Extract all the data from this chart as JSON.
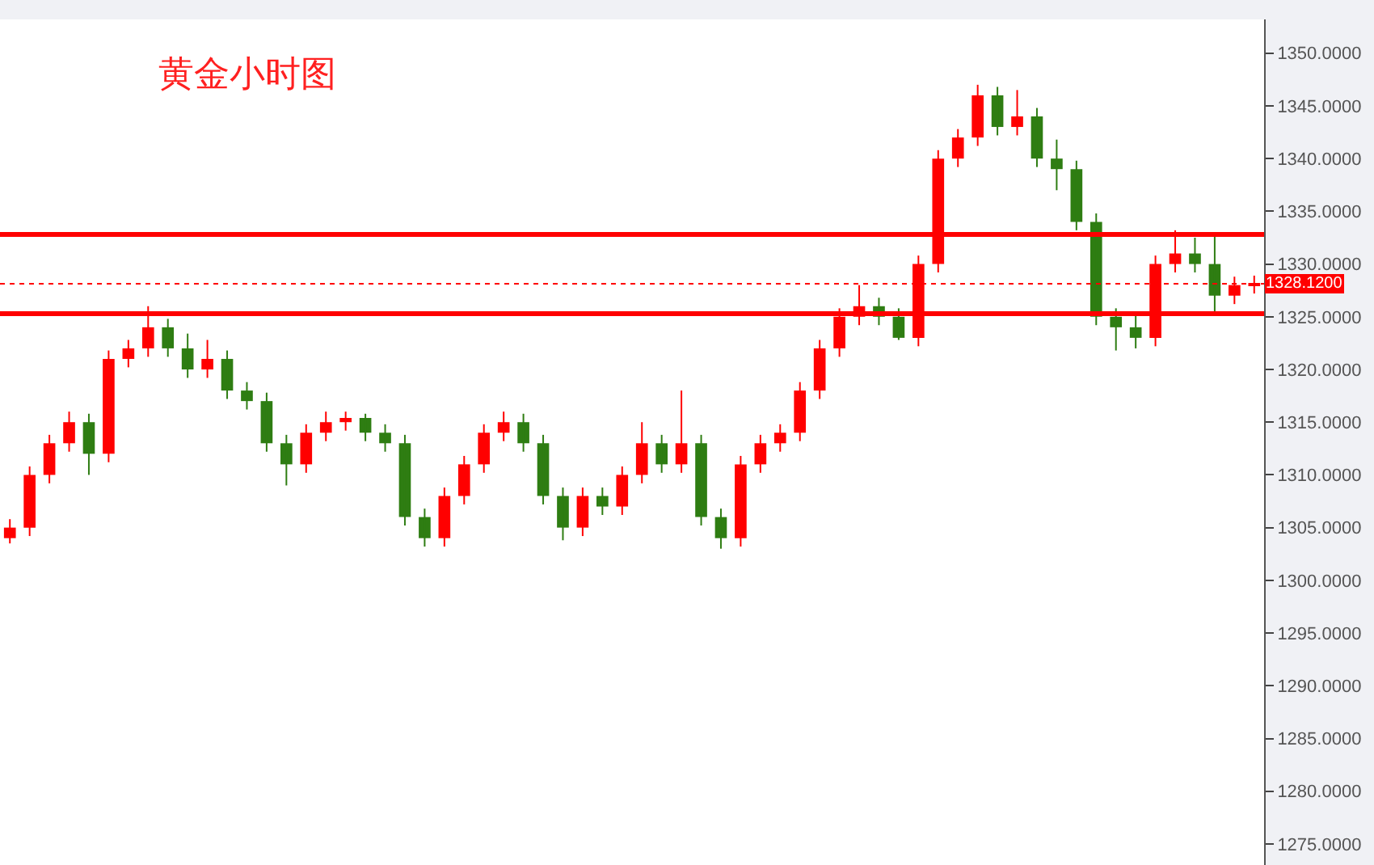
{
  "chart_data": {
    "type": "candlestick",
    "title": "黄金小时图",
    "categories": [
      null,
      null,
      null,
      null,
      null,
      null,
      null,
      null,
      null,
      null,
      null,
      null,
      null,
      null,
      null,
      null,
      null,
      null,
      null,
      null,
      null,
      null,
      null,
      null,
      null,
      null,
      null,
      null,
      null,
      null,
      null,
      null,
      null,
      null,
      null,
      null,
      null,
      null,
      null,
      null,
      null,
      null,
      null,
      null,
      null,
      null,
      null,
      null,
      null,
      null,
      null,
      null,
      null,
      null,
      null,
      null,
      null,
      null,
      null,
      null,
      null,
      null,
      null,
      null
    ],
    "series": [
      {
        "colors": [
          "#ff0000",
          "#ff0000",
          "#ff0000",
          "#ff0000",
          "#2e7d12",
          "#ff0000",
          "#ff0000",
          "#ff0000",
          "#2e7d12",
          "#2e7d12",
          "#ff0000",
          "#2e7d12",
          "#2e7d12",
          "#2e7d12",
          "#2e7d12",
          "#ff0000",
          "#ff0000",
          "#ff0000",
          "#2e7d12",
          "#2e7d12",
          "#2e7d12",
          "#2e7d12",
          "#ff0000",
          "#ff0000",
          "#ff0000",
          "#ff0000",
          "#2e7d12",
          "#2e7d12",
          "#2e7d12",
          "#ff0000",
          "#2e7d12",
          "#ff0000",
          "#ff0000",
          "#2e7d12",
          "#ff0000",
          "#2e7d12",
          "#2e7d12",
          "#ff0000",
          "#ff0000",
          "#ff0000",
          "#ff0000",
          "#ff0000",
          "#ff0000",
          "#ff0000",
          "#2e7d12",
          "#2e7d12",
          "#ff0000",
          "#ff0000",
          "#ff0000",
          "#ff0000",
          "#2e7d12",
          "#ff0000",
          "#2e7d12",
          "#2e7d12",
          "#2e7d12",
          "#2e7d12",
          "#2e7d12",
          "#2e7d12",
          "#ff0000",
          "#ff0000",
          "#2e7d12",
          "#2e7d12",
          "#ff0000",
          "#ff0000"
        ],
        "ohlc": [
          [
            1304,
            1305.8,
            1303.5,
            1305
          ],
          [
            1305,
            1310.8,
            1304.2,
            1310
          ],
          [
            1310,
            1313.8,
            1309.2,
            1313
          ],
          [
            1313,
            1316,
            1312.2,
            1315
          ],
          [
            1315,
            1315.8,
            1310,
            1312
          ],
          [
            1312,
            1321.8,
            1311.2,
            1321
          ],
          [
            1321,
            1322.8,
            1320.2,
            1322
          ],
          [
            1322,
            1326,
            1321.2,
            1324
          ],
          [
            1324,
            1324.8,
            1321.2,
            1322
          ],
          [
            1322,
            1323.4,
            1319.2,
            1320
          ],
          [
            1320,
            1322.8,
            1319.2,
            1321
          ],
          [
            1321,
            1321.8,
            1317.2,
            1318
          ],
          [
            1318,
            1318.8,
            1316.2,
            1317
          ],
          [
            1317,
            1317.8,
            1312.2,
            1313
          ],
          [
            1313,
            1313.8,
            1309,
            1311
          ],
          [
            1311,
            1314.8,
            1310.2,
            1314
          ],
          [
            1314,
            1316,
            1313.2,
            1315
          ],
          [
            1315,
            1316,
            1314.2,
            1315.4
          ],
          [
            1315.4,
            1315.8,
            1313.2,
            1314
          ],
          [
            1314,
            1314.8,
            1312.2,
            1313
          ],
          [
            1313,
            1313.8,
            1305.2,
            1306
          ],
          [
            1306,
            1306.8,
            1303.2,
            1304
          ],
          [
            1304,
            1308.8,
            1303.2,
            1308
          ],
          [
            1308,
            1311.8,
            1307.2,
            1311
          ],
          [
            1311,
            1314.8,
            1310.2,
            1314
          ],
          [
            1314,
            1316,
            1313.2,
            1315
          ],
          [
            1315,
            1315.8,
            1312.2,
            1313
          ],
          [
            1313,
            1313.8,
            1307.2,
            1308
          ],
          [
            1308,
            1308.8,
            1303.8,
            1305
          ],
          [
            1305,
            1308.8,
            1304.2,
            1308
          ],
          [
            1308,
            1308.8,
            1306.2,
            1307
          ],
          [
            1307,
            1310.8,
            1306.2,
            1310
          ],
          [
            1310,
            1315,
            1309.2,
            1313
          ],
          [
            1313,
            1313.8,
            1310.2,
            1311
          ],
          [
            1311,
            1318,
            1310.2,
            1313
          ],
          [
            1313,
            1313.8,
            1305.2,
            1306
          ],
          [
            1306,
            1306.8,
            1303,
            1304
          ],
          [
            1304,
            1311.8,
            1303.2,
            1311
          ],
          [
            1311,
            1313.8,
            1310.2,
            1313
          ],
          [
            1313,
            1314.8,
            1312.2,
            1314
          ],
          [
            1314,
            1318.8,
            1313.2,
            1318
          ],
          [
            1318,
            1322.8,
            1317.2,
            1322
          ],
          [
            1322,
            1325.8,
            1321.2,
            1325
          ],
          [
            1325,
            1328,
            1324.2,
            1326
          ],
          [
            1326,
            1326.8,
            1324.2,
            1325
          ],
          [
            1325,
            1325.8,
            1322.8,
            1323
          ],
          [
            1323,
            1330.8,
            1322.2,
            1330
          ],
          [
            1330,
            1340.8,
            1329.2,
            1340
          ],
          [
            1340,
            1342.8,
            1339.2,
            1342
          ],
          [
            1342,
            1347,
            1341.2,
            1346
          ],
          [
            1346,
            1346.8,
            1342.2,
            1343
          ],
          [
            1343,
            1346.5,
            1342.2,
            1344
          ],
          [
            1344,
            1344.8,
            1339.2,
            1340
          ],
          [
            1340,
            1341.8,
            1337,
            1339
          ],
          [
            1339,
            1339.8,
            1333.2,
            1334
          ],
          [
            1334,
            1334.8,
            1324.2,
            1325
          ],
          [
            1325,
            1325.8,
            1321.8,
            1324
          ],
          [
            1324,
            1325.5,
            1322,
            1323
          ],
          [
            1323,
            1330.8,
            1322.2,
            1330
          ],
          [
            1330,
            1333.2,
            1329.2,
            1331
          ],
          [
            1331,
            1332.5,
            1329.2,
            1330
          ],
          [
            1330,
            1332.6,
            1325.5,
            1327
          ],
          [
            1327,
            1328.8,
            1326.2,
            1328
          ],
          [
            1328,
            1328.9,
            1327.2,
            1328.12
          ]
        ]
      }
    ],
    "ylim": [
      1273,
      1353.2
    ],
    "yticks": [
      {
        "value": 1275,
        "label": "1275.0000"
      },
      {
        "value": 1280,
        "label": "1280.0000"
      },
      {
        "value": 1285,
        "label": "1285.0000"
      },
      {
        "value": 1290,
        "label": "1290.0000"
      },
      {
        "value": 1295,
        "label": "1295.0000"
      },
      {
        "value": 1300,
        "label": "1300.0000"
      },
      {
        "value": 1305,
        "label": "1305.0000"
      },
      {
        "value": 1310,
        "label": "1310.0000"
      },
      {
        "value": 1315,
        "label": "1315.0000"
      },
      {
        "value": 1320,
        "label": "1320.0000"
      },
      {
        "value": 1325,
        "label": "1325.0000"
      },
      {
        "value": 1330,
        "label": "1330.0000"
      },
      {
        "value": 1335,
        "label": "1335.0000"
      },
      {
        "value": 1340,
        "label": "1340.0000"
      },
      {
        "value": 1345,
        "label": "1345.0000"
      },
      {
        "value": 1350,
        "label": "1350.0000"
      }
    ],
    "ref_lines": [
      {
        "axis": "y",
        "value": 1325.3,
        "label": null,
        "color": "#ff0000",
        "line_style": "solid"
      },
      {
        "axis": "y",
        "value": 1332.8,
        "label": null,
        "color": "#ff0000",
        "line_style": "solid"
      },
      {
        "axis": "y",
        "value": 1328.12,
        "label": "1328.1200",
        "color": "#ff0000",
        "line_style": "dotted"
      }
    ],
    "tick_labels": "y",
    "legend": false
  }
}
